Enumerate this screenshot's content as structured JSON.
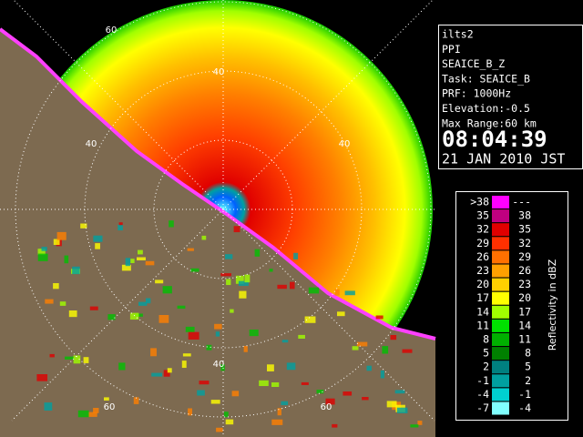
{
  "panel": {
    "lines": [
      "ilts2",
      "PPI",
      "SEAICE_B_Z",
      "Task: SEAICE_B",
      "PRF: 1000Hz",
      "Elevation:-0.5",
      "Max Range:60 km"
    ],
    "time": "08:04:39",
    "date": "21 JAN 2010 JST"
  },
  "legend": {
    "title": "Reflectivity in dBZ",
    "rows": [
      {
        "low": ">38",
        "high": "---",
        "color": "#ff00ff"
      },
      {
        "low": "35",
        "high": "38",
        "color": "#c00080"
      },
      {
        "low": "32",
        "high": "35",
        "color": "#e00000"
      },
      {
        "low": "29",
        "high": "32",
        "color": "#ff3000"
      },
      {
        "low": "26",
        "high": "29",
        "color": "#ff7000"
      },
      {
        "low": "23",
        "high": "26",
        "color": "#ffa000"
      },
      {
        "low": "20",
        "high": "23",
        "color": "#ffd000"
      },
      {
        "low": "17",
        "high": "20",
        "color": "#ffff00"
      },
      {
        "low": "14",
        "high": "17",
        "color": "#a0ff00"
      },
      {
        "low": "11",
        "high": "14",
        "color": "#00e000"
      },
      {
        "low": "8",
        "high": "11",
        "color": "#00b000"
      },
      {
        "low": "5",
        "high": "8",
        "color": "#008000"
      },
      {
        "low": "2",
        "high": "5",
        "color": "#008080"
      },
      {
        "low": "-1",
        "high": "2",
        "color": "#00a0a0"
      },
      {
        "low": "-4",
        "high": "-1",
        "color": "#00d0d0"
      },
      {
        "low": "-7",
        "high": "-4",
        "color": "#80ffff"
      }
    ]
  },
  "range_labels": [
    "60",
    "40",
    "40",
    "40",
    "40",
    "60",
    "60"
  ]
}
